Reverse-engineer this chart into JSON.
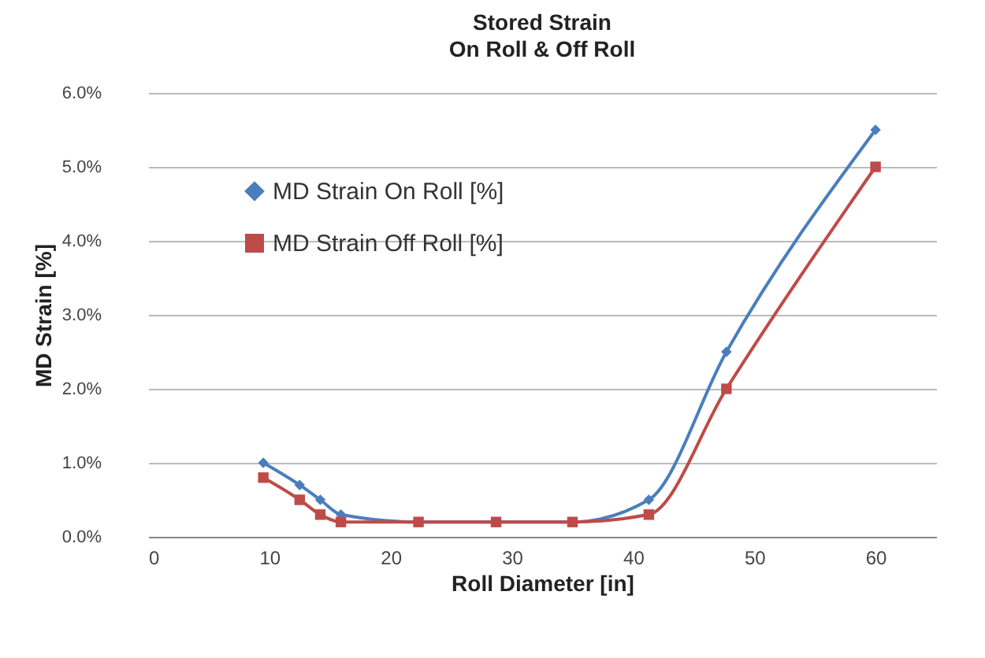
{
  "chart_data": {
    "type": "line",
    "title": "Stored Strain",
    "subtitle": "On Roll & Off Roll",
    "xlabel": "Roll Diameter [in]",
    "ylabel": "MD Strain [%]",
    "x": [
      9.5,
      12.5,
      14.2,
      15.9,
      22.3,
      28.7,
      35,
      41.3,
      47.7,
      60
    ],
    "series": [
      {
        "name": "MD Strain On Roll [%]",
        "color": "#4a7ebb",
        "marker": "diamond",
        "values": [
          1.0,
          0.7,
          0.5,
          0.3,
          0.2,
          0.2,
          0.2,
          0.5,
          2.5,
          5.5
        ]
      },
      {
        "name": "MD Strain Off Roll [%]",
        "color": "#be4b48",
        "marker": "square",
        "values": [
          0.8,
          0.5,
          0.3,
          0.2,
          0.2,
          0.2,
          0.2,
          0.3,
          2.0,
          5.0
        ]
      }
    ],
    "xlim": [
      0,
      65
    ],
    "xticks": [
      0,
      10,
      20,
      30,
      40,
      50,
      60
    ],
    "ylim": [
      0,
      6
    ],
    "yticks": [
      {
        "value": 0,
        "label": "0.0%"
      },
      {
        "value": 1,
        "label": "1.0%"
      },
      {
        "value": 2,
        "label": "2.0%"
      },
      {
        "value": 3,
        "label": "3.0%"
      },
      {
        "value": 4,
        "label": "4.0%"
      },
      {
        "value": 5,
        "label": "5.0%"
      },
      {
        "value": 6,
        "label": "6.0%"
      }
    ],
    "grid": "y",
    "legend": "top left"
  }
}
